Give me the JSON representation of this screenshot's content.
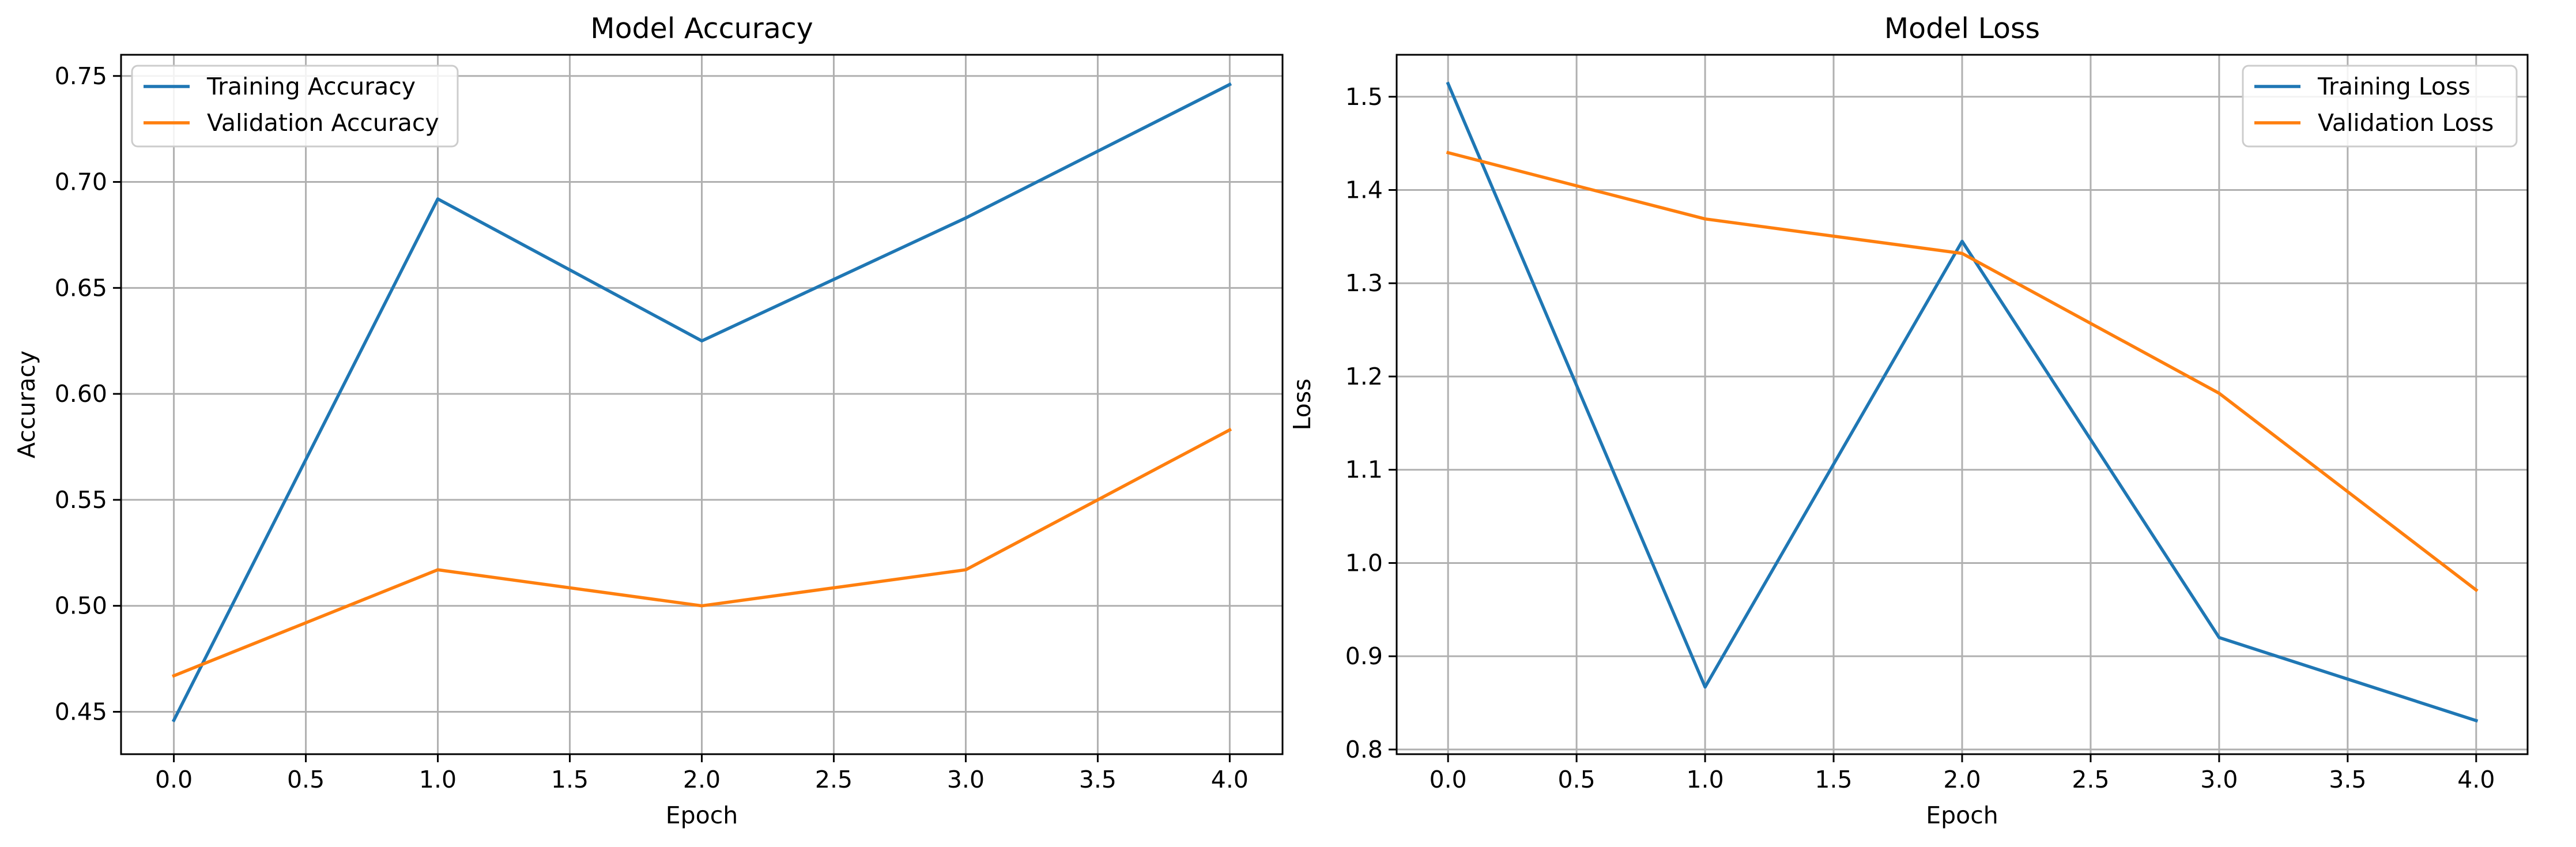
{
  "chart_data": [
    {
      "type": "line",
      "title": "Model Accuracy",
      "xlabel": "Epoch",
      "ylabel": "Accuracy",
      "x": [
        0,
        1,
        2,
        3,
        4
      ],
      "xlim": [
        -0.2,
        4.2
      ],
      "ylim": [
        0.43,
        0.76
      ],
      "xticks": [
        0.0,
        0.5,
        1.0,
        1.5,
        2.0,
        2.5,
        3.0,
        3.5,
        4.0
      ],
      "xtick_labels": [
        "0.0",
        "0.5",
        "1.0",
        "1.5",
        "2.0",
        "2.5",
        "3.0",
        "3.5",
        "4.0"
      ],
      "yticks": [
        0.45,
        0.5,
        0.55,
        0.6,
        0.65,
        0.7,
        0.75
      ],
      "ytick_labels": [
        "0.45",
        "0.50",
        "0.55",
        "0.60",
        "0.65",
        "0.70",
        "0.75"
      ],
      "grid": true,
      "legend_position": "upper left",
      "series": [
        {
          "name": "Training Accuracy",
          "color": "#1f77b4",
          "values": [
            0.446,
            0.692,
            0.625,
            0.683,
            0.746
          ]
        },
        {
          "name": "Validation Accuracy",
          "color": "#ff7f0e",
          "values": [
            0.467,
            0.517,
            0.5,
            0.517,
            0.583
          ]
        }
      ]
    },
    {
      "type": "line",
      "title": "Model Loss",
      "xlabel": "Epoch",
      "ylabel": "Loss",
      "x": [
        0,
        1,
        2,
        3,
        4
      ],
      "xlim": [
        -0.2,
        4.2
      ],
      "ylim": [
        0.795,
        1.545
      ],
      "xticks": [
        0.0,
        0.5,
        1.0,
        1.5,
        2.0,
        2.5,
        3.0,
        3.5,
        4.0
      ],
      "xtick_labels": [
        "0.0",
        "0.5",
        "1.0",
        "1.5",
        "2.0",
        "2.5",
        "3.0",
        "3.5",
        "4.0"
      ],
      "yticks": [
        0.8,
        0.9,
        1.0,
        1.1,
        1.2,
        1.3,
        1.4,
        1.5
      ],
      "ytick_labels": [
        "0.8",
        "0.9",
        "1.0",
        "1.1",
        "1.2",
        "1.3",
        "1.4",
        "1.5"
      ],
      "grid": true,
      "legend_position": "upper right",
      "series": [
        {
          "name": "Training Loss",
          "color": "#1f77b4",
          "values": [
            1.514,
            0.867,
            1.345,
            0.92,
            0.831
          ]
        },
        {
          "name": "Validation Loss",
          "color": "#ff7f0e",
          "values": [
            1.44,
            1.369,
            1.332,
            1.182,
            0.971
          ]
        }
      ]
    }
  ]
}
